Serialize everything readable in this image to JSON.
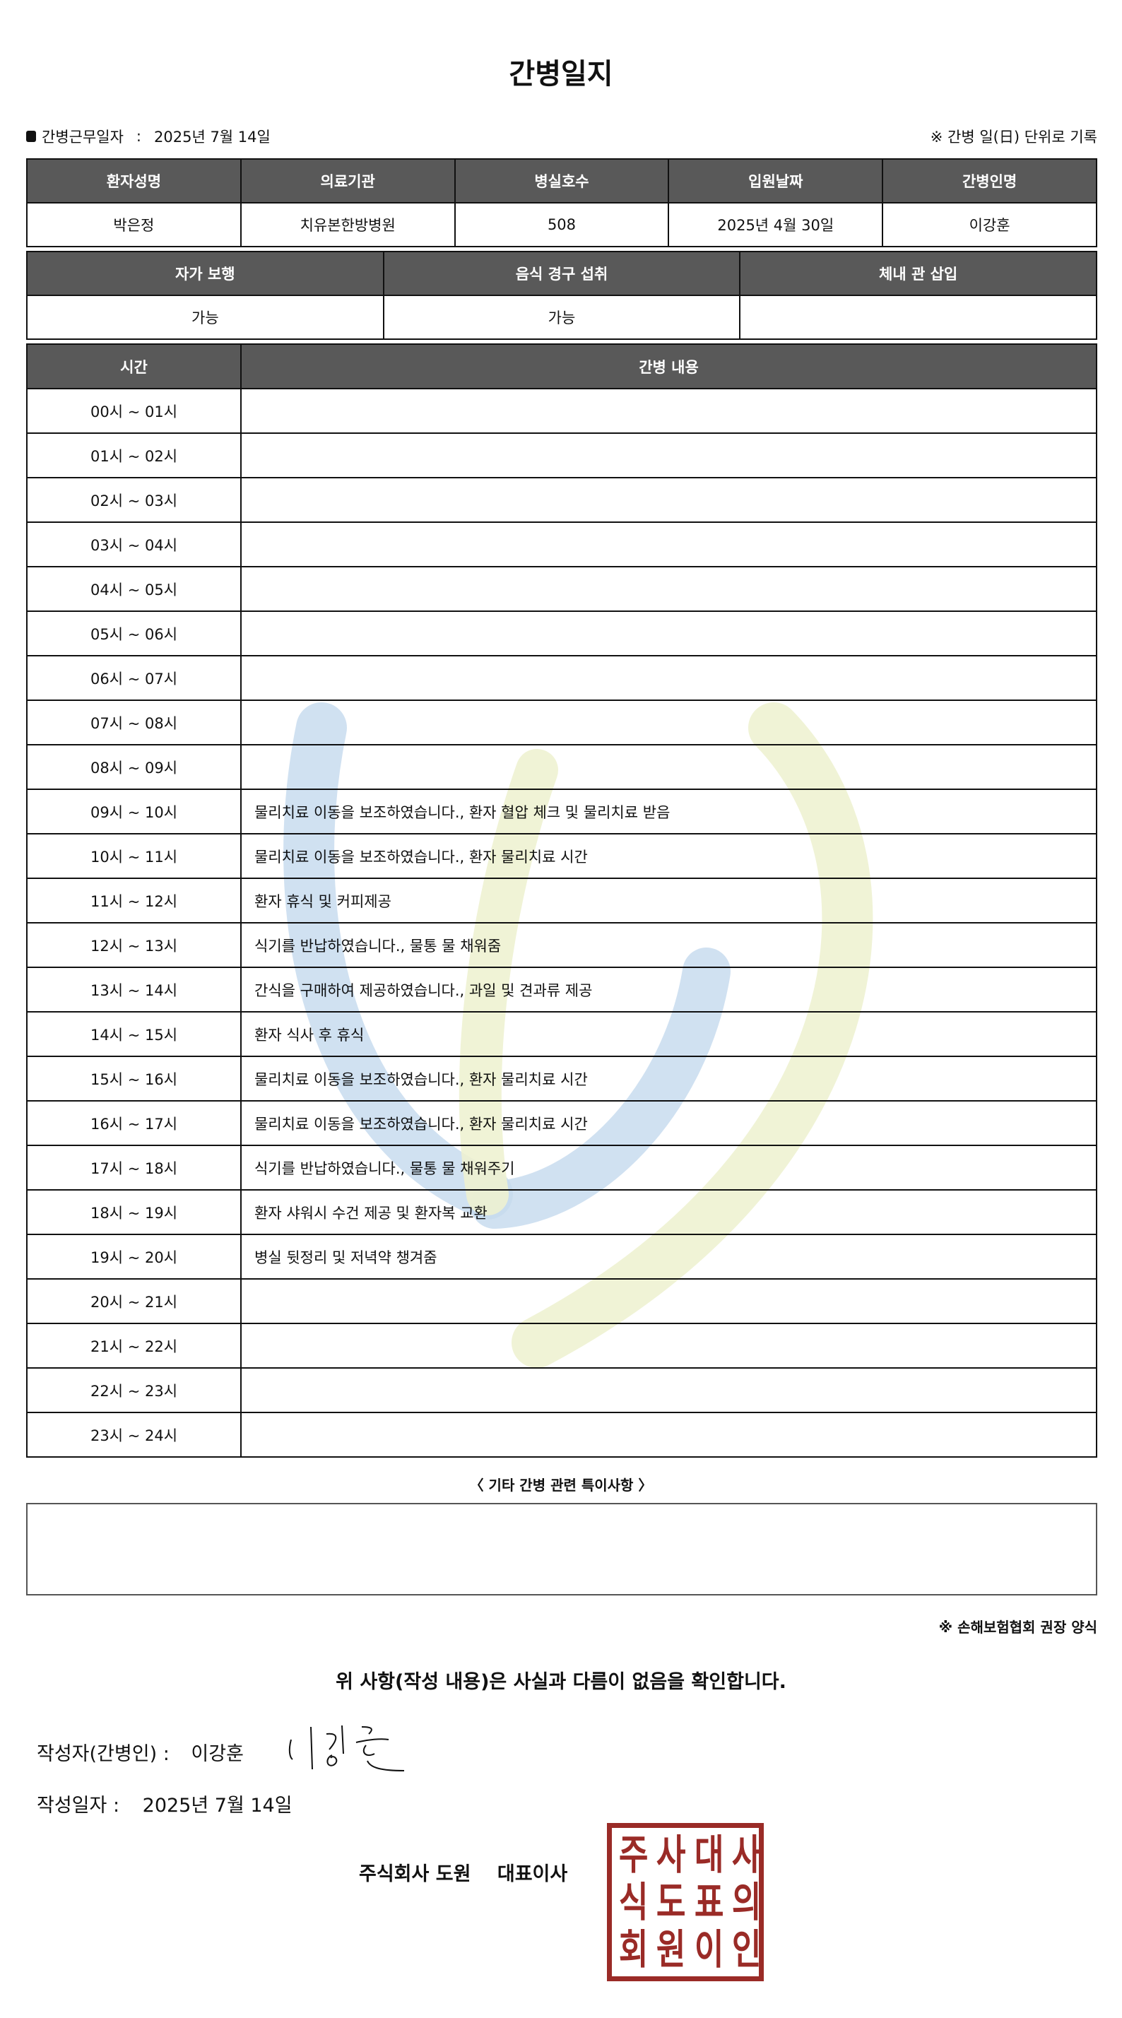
{
  "title": "간병일지",
  "work_date_label": "간병근무일자",
  "work_date_sep": ":",
  "work_date": "2025년 7월 14일",
  "record_note": "※ 간병 일(日) 단위로 기록",
  "patient_table": {
    "headers": [
      "환자성명",
      "의료기관",
      "병실호수",
      "입원날짜",
      "간병인명"
    ],
    "values": [
      "박은정",
      "치유본한방병원",
      "508",
      "2025년 4월 30일",
      "이강훈"
    ]
  },
  "status_table": {
    "headers": [
      "자가 보행",
      "음식 경구 섭취",
      "체내 관 삽입"
    ],
    "values": [
      "가능",
      "가능",
      ""
    ]
  },
  "log_table": {
    "headers": [
      "시간",
      "간병 내용"
    ],
    "rows": [
      {
        "time": "00시 ~ 01시",
        "content": ""
      },
      {
        "time": "01시 ~ 02시",
        "content": ""
      },
      {
        "time": "02시 ~ 03시",
        "content": ""
      },
      {
        "time": "03시 ~ 04시",
        "content": ""
      },
      {
        "time": "04시 ~ 05시",
        "content": ""
      },
      {
        "time": "05시 ~ 06시",
        "content": ""
      },
      {
        "time": "06시 ~ 07시",
        "content": ""
      },
      {
        "time": "07시 ~ 08시",
        "content": ""
      },
      {
        "time": "08시 ~ 09시",
        "content": ""
      },
      {
        "time": "09시 ~ 10시",
        "content": "물리치료 이동을 보조하였습니다., 환자 혈압 체크 및 물리치료 받음"
      },
      {
        "time": "10시 ~ 11시",
        "content": "물리치료 이동을 보조하였습니다., 환자 물리치료 시간"
      },
      {
        "time": "11시 ~ 12시",
        "content": "환자 휴식 및 커피제공"
      },
      {
        "time": "12시 ~ 13시",
        "content": "식기를 반납하였습니다., 물통 물 채워줌"
      },
      {
        "time": "13시 ~ 14시",
        "content": "간식을 구매하여 제공하였습니다., 과일 및 견과류 제공"
      },
      {
        "time": "14시 ~ 15시",
        "content": "환자 식사 후 휴식"
      },
      {
        "time": "15시 ~ 16시",
        "content": "물리치료 이동을 보조하였습니다., 환자 물리치료 시간"
      },
      {
        "time": "16시 ~ 17시",
        "content": "물리치료 이동을 보조하였습니다., 환자 물리치료 시간"
      },
      {
        "time": "17시 ~ 18시",
        "content": "식기를 반납하였습니다., 물통 물 채워주기"
      },
      {
        "time": "18시 ~ 19시",
        "content": "환자 샤워시 수건 제공 및 환자복 교환"
      },
      {
        "time": "19시 ~ 20시",
        "content": "병실 뒷정리 및 저녁약 챙겨줌"
      },
      {
        "time": "20시 ~ 21시",
        "content": ""
      },
      {
        "time": "21시 ~ 22시",
        "content": ""
      },
      {
        "time": "22시 ~ 23시",
        "content": ""
      },
      {
        "time": "23시 ~ 24시",
        "content": ""
      }
    ]
  },
  "special_notes_label": "〈 기타 간병 관련 특이사항 〉",
  "special_notes": "",
  "form_note": "※ 손해보험협회 권장 양식",
  "confirm_text": "위 사항(작성 내용)은 사실과 다름이 없음을 확인합니다.",
  "writer_label": "작성자(간병인) :",
  "writer_name": "이강훈",
  "signature_text": "이강훈",
  "write_date_label": "작성일자 :",
  "write_date": "2025년 7월 14일",
  "company_name": "주식회사 도원",
  "company_title": "대표이사",
  "seal_text": "주식회사도원대표이사의인",
  "colors": {
    "header_bg": "#595959",
    "seal": "#9a2b27",
    "watermark_blue": "#c8dcee",
    "watermark_green": "#eef2d2"
  }
}
